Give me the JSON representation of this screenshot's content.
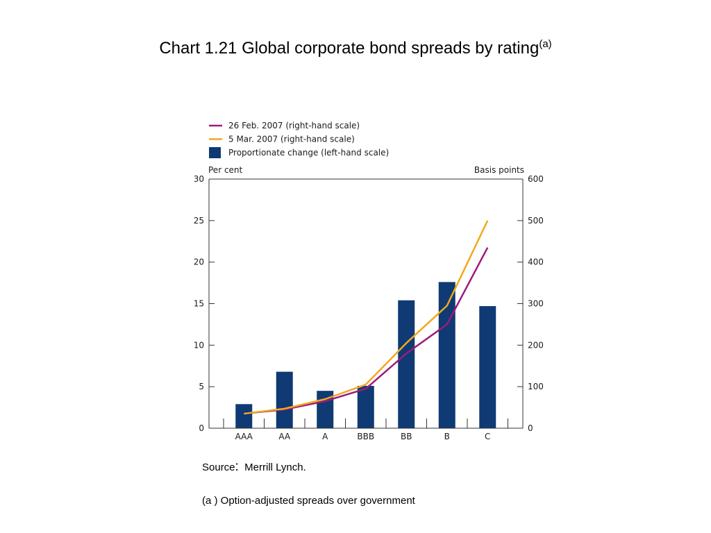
{
  "title": {
    "text": "Chart 1.21  Global corporate bond spreads by rating",
    "superscript": "(a)"
  },
  "source": {
    "label": "Source",
    "colon": ":",
    "text": "Merrill Lynch."
  },
  "footnote": "(a ) Option-adjusted spreads over government",
  "colors": {
    "bars": "#0f3a73",
    "line_feb": "#9b1b7e",
    "line_mar": "#f2a81d",
    "axis": "#333333"
  },
  "chart_data": {
    "type": "bar",
    "categories": [
      "AAA",
      "AA",
      "A",
      "BBB",
      "BB",
      "B",
      "C"
    ],
    "left_axis": {
      "label": "Per cent",
      "ylim": [
        0,
        30
      ],
      "ticks": [
        "0",
        "5",
        "10",
        "15",
        "20",
        "25",
        "30"
      ]
    },
    "right_axis": {
      "label": "Basis points",
      "ylim": [
        0,
        600
      ],
      "ticks": [
        "0",
        "100",
        "200",
        "300",
        "400",
        "500",
        "600"
      ]
    },
    "series": [
      {
        "name": "Proportionate change (left-hand scale)",
        "type": "bar",
        "axis": "left",
        "color": "#0f3a73",
        "values": [
          2.9,
          6.8,
          4.5,
          5.1,
          15.4,
          17.6,
          14.7
        ]
      },
      {
        "name": "26 Feb. 2007 (right-hand scale)",
        "type": "line",
        "axis": "right",
        "color": "#9b1b7e",
        "values": [
          35,
          45,
          65,
          95,
          180,
          250,
          435
        ]
      },
      {
        "name": "5 Mar. 2007 (right-hand scale)",
        "type": "line",
        "axis": "right",
        "color": "#f2a81d",
        "values": [
          35,
          47,
          70,
          105,
          205,
          295,
          500
        ]
      }
    ],
    "legend_position": "top-left, above plot",
    "grid": false
  }
}
